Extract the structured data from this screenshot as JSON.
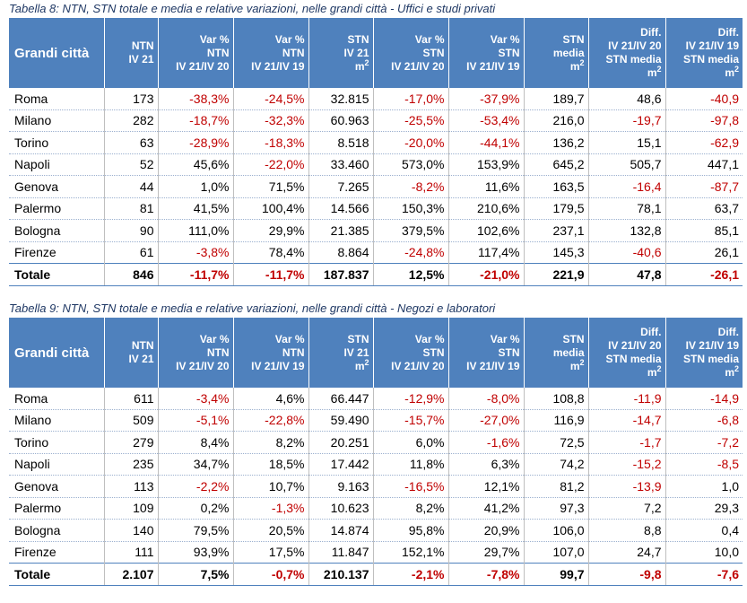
{
  "tables": [
    {
      "caption": "Tabella 8: NTN, STN totale e media e relative variazioni, nelle grandi città - Uffici e studi privati",
      "headers": {
        "city": "Grandi città",
        "ntn_1": "NTN",
        "ntn_2": "IV 21",
        "varntn20_1": "Var %",
        "varntn20_2": "NTN",
        "varntn20_3": "IV 21/IV 20",
        "varntn19_1": "Var %",
        "varntn19_2": "NTN",
        "varntn19_3": "IV 21/IV 19",
        "stn_1": "STN",
        "stn_2": "IV 21",
        "stn_3": "m",
        "stn_sup": "2",
        "varstn20_1": "Var %",
        "varstn20_2": "STN",
        "varstn20_3": "IV 21/IV 20",
        "varstn19_1": "Var %",
        "varstn19_2": "STN",
        "varstn19_3": "IV 21/IV 19",
        "stnm_1": "STN",
        "stnm_2": "media",
        "stnm_3": "m",
        "stnm_sup": "2",
        "diff20_1": "Diff.",
        "diff20_2": "IV 21/IV 20",
        "diff20_3": "STN media",
        "diff20_4": "m",
        "diff20_sup": "2",
        "diff19_1": "Diff.",
        "diff19_2": "IV 21/IV 19",
        "diff19_3": "STN media",
        "diff19_4": "m",
        "diff19_sup": "2"
      },
      "rows": [
        [
          "Roma",
          "173",
          "-38,3%",
          "-24,5%",
          "32.815",
          "-17,0%",
          "-37,9%",
          "189,7",
          "48,6",
          "-40,9"
        ],
        [
          "Milano",
          "282",
          "-18,7%",
          "-32,3%",
          "60.963",
          "-25,5%",
          "-53,4%",
          "216,0",
          "-19,7",
          "-97,8"
        ],
        [
          "Torino",
          "63",
          "-28,9%",
          "-18,3%",
          "8.518",
          "-20,0%",
          "-44,1%",
          "136,2",
          "15,1",
          "-62,9"
        ],
        [
          "Napoli",
          "52",
          "45,6%",
          "-22,0%",
          "33.460",
          "573,0%",
          "153,9%",
          "645,2",
          "505,7",
          "447,1"
        ],
        [
          "Genova",
          "44",
          "1,0%",
          "71,5%",
          "7.265",
          "-8,2%",
          "11,6%",
          "163,5",
          "-16,4",
          "-87,7"
        ],
        [
          "Palermo",
          "81",
          "41,5%",
          "100,4%",
          "14.566",
          "150,3%",
          "210,6%",
          "179,5",
          "78,1",
          "63,7"
        ],
        [
          "Bologna",
          "90",
          "111,0%",
          "29,9%",
          "21.385",
          "379,5%",
          "102,6%",
          "237,1",
          "132,8",
          "85,1"
        ],
        [
          "Firenze",
          "61",
          "-3,8%",
          "78,4%",
          "8.864",
          "-24,8%",
          "117,4%",
          "145,3",
          "-40,6",
          "26,1"
        ]
      ],
      "total": [
        "Totale",
        "846",
        "-11,7%",
        "-11,7%",
        "187.837",
        "12,5%",
        "-21,0%",
        "221,9",
        "47,8",
        "-26,1"
      ]
    },
    {
      "caption": "Tabella 9: NTN, STN totale e media e relative variazioni, nelle grandi città - Negozi e laboratori",
      "headers": {
        "city": "Grandi città",
        "ntn_1": "NTN",
        "ntn_2": "IV 21",
        "varntn20_1": "Var %",
        "varntn20_2": "NTN",
        "varntn20_3": "IV 21/IV 20",
        "varntn19_1": "Var %",
        "varntn19_2": "NTN",
        "varntn19_3": "IV 21/IV 19",
        "stn_1": "STN",
        "stn_2": "IV 21",
        "stn_3": "m",
        "stn_sup": "2",
        "varstn20_1": "Var %",
        "varstn20_2": "STN",
        "varstn20_3": "IV 21/IV 20",
        "varstn19_1": "Var %",
        "varstn19_2": "STN",
        "varstn19_3": "IV 21/IV 19",
        "stnm_1": "STN",
        "stnm_2": "media",
        "stnm_3": "m",
        "stnm_sup": "2",
        "diff20_1": "Diff.",
        "diff20_2": "IV 21/IV 20",
        "diff20_3": "STN media",
        "diff20_4": "m",
        "diff20_sup": "2",
        "diff19_1": "Diff.",
        "diff19_2": "IV 21/IV 19",
        "diff19_3": "STN media",
        "diff19_4": "m",
        "diff19_sup": "2"
      },
      "rows": [
        [
          "Roma",
          "611",
          "-3,4%",
          "4,6%",
          "66.447",
          "-12,9%",
          "-8,0%",
          "108,8",
          "-11,9",
          "-14,9"
        ],
        [
          "Milano",
          "509",
          "-5,1%",
          "-22,8%",
          "59.490",
          "-15,7%",
          "-27,0%",
          "116,9",
          "-14,7",
          "-6,8"
        ],
        [
          "Torino",
          "279",
          "8,4%",
          "8,2%",
          "20.251",
          "6,0%",
          "-1,6%",
          "72,5",
          "-1,7",
          "-7,2"
        ],
        [
          "Napoli",
          "235",
          "34,7%",
          "18,5%",
          "17.442",
          "11,8%",
          "6,3%",
          "74,2",
          "-15,2",
          "-8,5"
        ],
        [
          "Genova",
          "113",
          "-2,2%",
          "10,7%",
          "9.163",
          "-16,5%",
          "12,1%",
          "81,2",
          "-13,9",
          "1,0"
        ],
        [
          "Palermo",
          "109",
          "0,2%",
          "-1,3%",
          "10.623",
          "8,2%",
          "41,2%",
          "97,3",
          "7,2",
          "29,3"
        ],
        [
          "Bologna",
          "140",
          "79,5%",
          "20,5%",
          "14.874",
          "95,8%",
          "20,9%",
          "106,0",
          "8,8",
          "0,4"
        ],
        [
          "Firenze",
          "111",
          "93,9%",
          "17,5%",
          "11.847",
          "152,1%",
          "29,7%",
          "107,0",
          "24,7",
          "10,0"
        ]
      ],
      "total": [
        "Totale",
        "2.107",
        "7,5%",
        "-0,7%",
        "210.137",
        "-2,1%",
        "-7,8%",
        "99,7",
        "-9,8",
        "-7,6"
      ]
    }
  ],
  "colors": {
    "header_bg": "#4f81bd",
    "negative": "#c00000",
    "caption": "#1f3864"
  }
}
